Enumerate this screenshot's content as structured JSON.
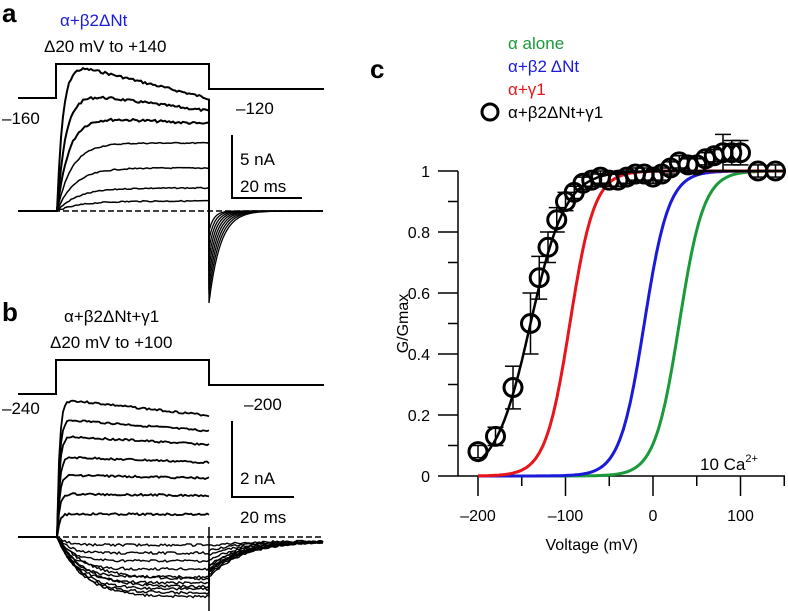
{
  "panels": {
    "a": {
      "letter": "a",
      "construct": "α+β2ΔNt",
      "construct_color": "#1a1adb",
      "protocol": "Δ20 mV to +140",
      "holding_label": "–160",
      "tail_label": "–120",
      "scale_current": "5 nA",
      "scale_time": "20 ms",
      "trace_count": 15
    },
    "b": {
      "letter": "b",
      "construct": "α+β2ΔNt+γ1",
      "construct_color": "#000000",
      "protocol": "Δ20 mV to +100",
      "holding_label": "–240",
      "tail_label": "–200",
      "scale_current": "2 nA",
      "scale_time": "20 ms",
      "trace_count": 18
    },
    "c": {
      "letter": "c",
      "annotation_prefix": "10 Ca",
      "annotation_superscript": "2+"
    }
  },
  "chart_data": [
    {
      "type": "line",
      "panel": "c",
      "title": "",
      "xlabel": "Voltage (mV)",
      "ylabel": "G/Gmax",
      "xlim": [
        -210,
        150
      ],
      "ylim": [
        0,
        1.05
      ],
      "xticks": [
        -200,
        -100,
        0,
        100
      ],
      "xtick_labels": [
        "–200",
        "–100",
        "0",
        "100"
      ],
      "x_minor_ticks": [
        -150,
        -50,
        50,
        150
      ],
      "yticks": [
        0,
        0.2,
        0.4,
        0.6,
        0.8,
        1
      ],
      "ytick_labels": [
        "0",
        "0.2",
        "0.4",
        "0.6",
        "0.8",
        "1"
      ],
      "y_minor_ticks": [
        0.1,
        0.3,
        0.5,
        0.7,
        0.9
      ],
      "grid": false,
      "legend_position": "top-left",
      "series": [
        {
          "name": "α alone",
          "kind": "boltzmann-fit",
          "color": "#1a9a3a",
          "v_half": 30,
          "slope": 14
        },
        {
          "name": "α+β2 ΔNt",
          "kind": "boltzmann-fit",
          "color": "#1a1adb",
          "v_half": -10,
          "slope": 14
        },
        {
          "name": "α+γ1",
          "kind": "boltzmann-fit",
          "color": "#e8161a",
          "v_half": -95,
          "slope": 14
        },
        {
          "name": "α+β2ΔNt+γ1",
          "kind": "data-with-fit",
          "color": "#000000",
          "marker": "open-circle",
          "fit": {
            "v_half": -140,
            "slope": 20
          },
          "x": [
            -200,
            -180,
            -160,
            -140,
            -130,
            -120,
            -110,
            -100,
            -90,
            -80,
            -70,
            -60,
            -50,
            -40,
            -30,
            -20,
            -10,
            0,
            10,
            20,
            30,
            40,
            50,
            60,
            70,
            80,
            90,
            100,
            120,
            140
          ],
          "y": [
            0.08,
            0.13,
            0.29,
            0.5,
            0.65,
            0.75,
            0.84,
            0.9,
            0.93,
            0.96,
            0.97,
            0.98,
            0.97,
            0.97,
            0.98,
            0.99,
            0.99,
            0.98,
            0.99,
            1.01,
            1.03,
            1.02,
            1.02,
            1.04,
            1.05,
            1.06,
            1.06,
            1.06,
            1.0,
            1.0
          ],
          "err": [
            0.02,
            0.03,
            0.07,
            0.1,
            0.07,
            0.05,
            0.04,
            0.03,
            0.02,
            0.02,
            0.02,
            0.02,
            0.02,
            0.02,
            0.02,
            0.02,
            0.02,
            0.02,
            0.02,
            0.02,
            0.02,
            0.02,
            0.02,
            0.02,
            0.02,
            0.06,
            0.04,
            0.04,
            0.02,
            0.02
          ]
        }
      ]
    }
  ]
}
